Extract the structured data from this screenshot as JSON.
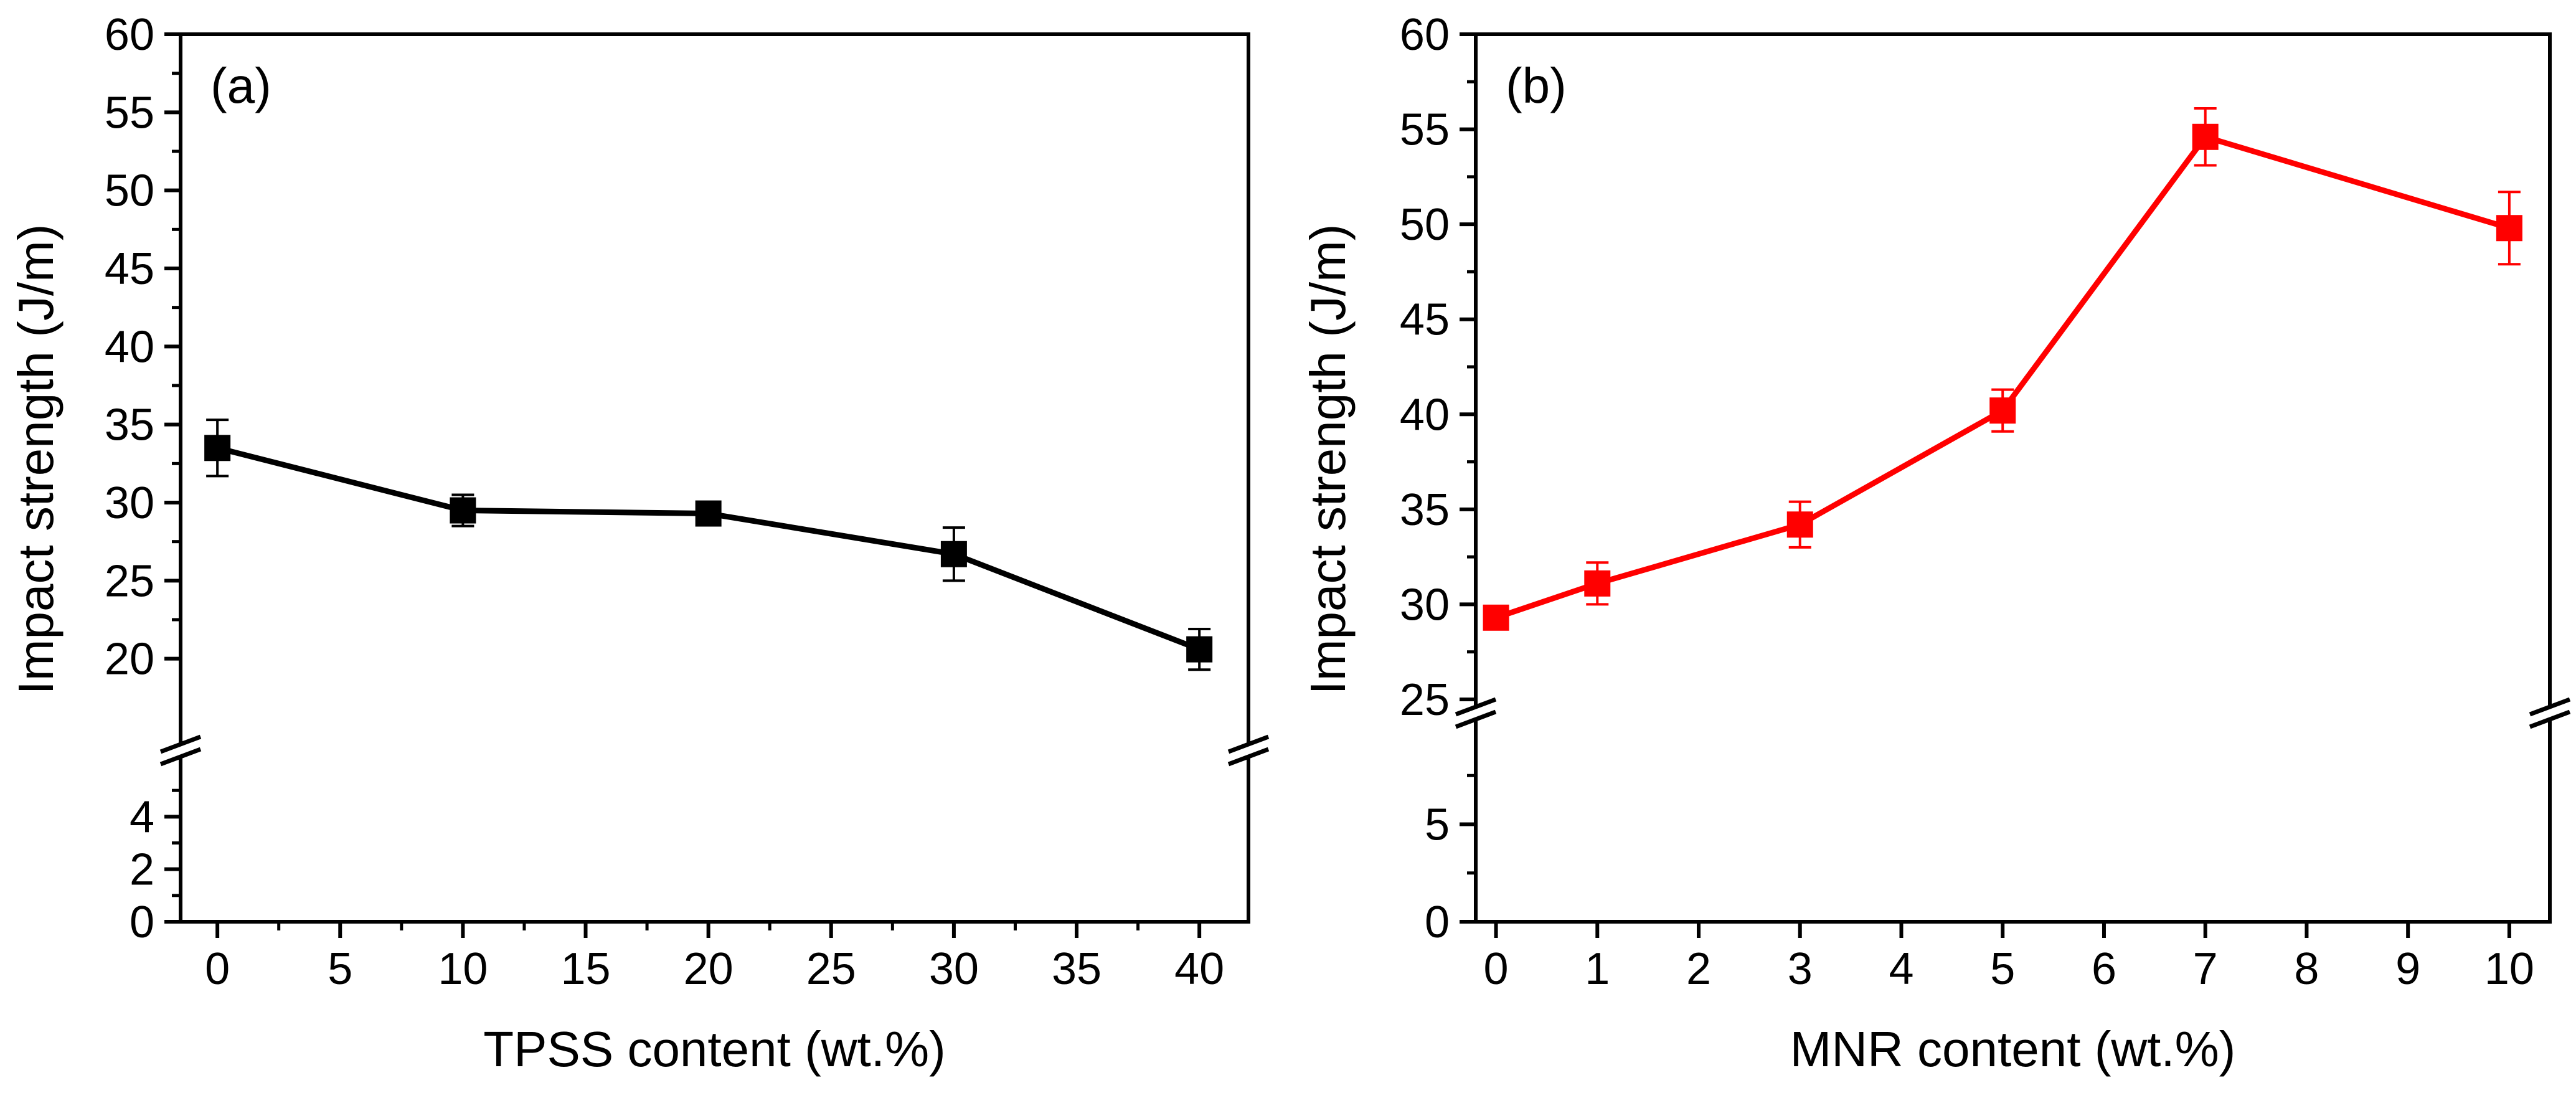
{
  "chart_data": [
    {
      "type": "line",
      "panel_label": "(a)",
      "xlabel": "TPSS content (wt.%)",
      "ylabel": "Impact strength (J/m)",
      "color": "#000000",
      "x_ticks": [
        0,
        5,
        10,
        15,
        20,
        25,
        30,
        35,
        40
      ],
      "xlim": [
        -1.5,
        42
      ],
      "y_axis_break": true,
      "y_lower_range": [
        0,
        6
      ],
      "y_lower_ticks": [
        0,
        2,
        4
      ],
      "y_upper_range": [
        15,
        60
      ],
      "y_upper_ticks": [
        20,
        25,
        30,
        35,
        40,
        45,
        50,
        55,
        60
      ],
      "series": [
        {
          "name": "TPSS",
          "x": [
            0,
            10,
            20,
            30,
            40
          ],
          "y": [
            33.5,
            29.5,
            29.3,
            26.7,
            20.6
          ],
          "err": [
            1.8,
            1.0,
            0.4,
            1.7,
            1.3
          ]
        }
      ]
    },
    {
      "type": "line",
      "panel_label": "(b)",
      "xlabel": "MNR content (wt.%)",
      "ylabel": "Impact strength (J/m)",
      "color": "#ff0000",
      "x_ticks": [
        0,
        1,
        2,
        3,
        4,
        5,
        6,
        7,
        8,
        9,
        10
      ],
      "xlim": [
        -0.2,
        10.4
      ],
      "y_axis_break": true,
      "y_lower_range": [
        0,
        10
      ],
      "y_lower_ticks": [
        0,
        5
      ],
      "y_upper_range": [
        25,
        60
      ],
      "y_upper_ticks": [
        25,
        30,
        35,
        40,
        45,
        50,
        55,
        60
      ],
      "series": [
        {
          "name": "MNR",
          "x": [
            0,
            1,
            3,
            5,
            7,
            10
          ],
          "y": [
            29.3,
            31.1,
            34.2,
            40.2,
            54.6,
            49.8
          ],
          "err": [
            0.4,
            1.1,
            1.2,
            1.1,
            1.5,
            1.9
          ]
        }
      ]
    }
  ]
}
